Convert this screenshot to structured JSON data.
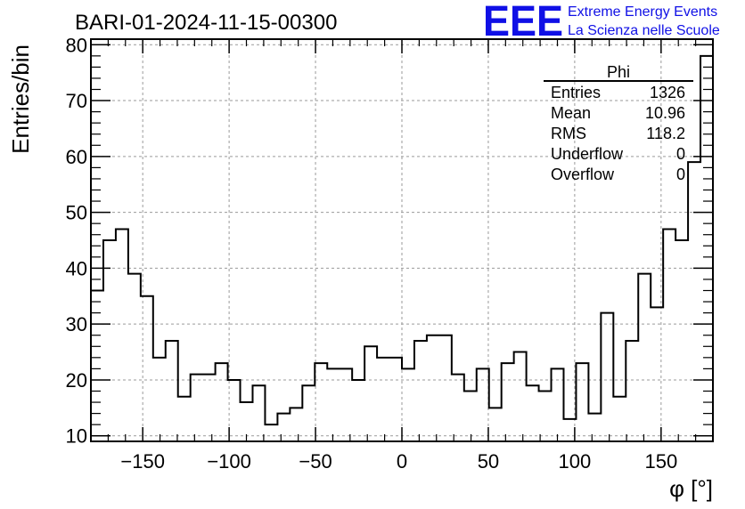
{
  "chart_data": {
    "type": "histogram",
    "title": "BARI-01-2024-11-15-00300",
    "xlabel": "φ [°]",
    "ylabel": "Entries/bin",
    "xlim": [
      -180,
      180
    ],
    "ylim": [
      9,
      81
    ],
    "grid": true,
    "x_ticks": [
      -150,
      -100,
      -50,
      0,
      50,
      100,
      150
    ],
    "x_tick_labels": [
      "−150",
      "−100",
      "−50",
      "0",
      "50",
      "100",
      "150"
    ],
    "y_ticks": [
      10,
      20,
      30,
      40,
      50,
      60,
      70,
      80
    ],
    "y_tick_labels": [
      "10",
      "20",
      "30",
      "40",
      "50",
      "60",
      "70",
      "80"
    ],
    "bin_edges_start": -180,
    "bin_width": 7.2,
    "counts": [
      36,
      45,
      47,
      39,
      35,
      24,
      27,
      17,
      21,
      21,
      23,
      20,
      16,
      19,
      12,
      14,
      15,
      19,
      23,
      22,
      22,
      20,
      26,
      24,
      24,
      22,
      27,
      28,
      28,
      21,
      18,
      22,
      15,
      23,
      25,
      19,
      18,
      22,
      13,
      23,
      14,
      32,
      17,
      27,
      39,
      33,
      47,
      45,
      59,
      78
    ],
    "line_color": "#000000",
    "stats_box": {
      "title": "Phi",
      "rows": [
        {
          "label": "Entries",
          "value": "1326"
        },
        {
          "label": "Mean",
          "value": "10.96"
        },
        {
          "label": "RMS",
          "value": "118.2"
        },
        {
          "label": "Underflow",
          "value": "0"
        },
        {
          "label": "Overflow",
          "value": "0"
        }
      ]
    }
  },
  "logo": {
    "mark": "EEE",
    "line1": "Extreme Energy Events",
    "line2": "La Scienza nelle Scuole",
    "color": "#1010e6"
  }
}
